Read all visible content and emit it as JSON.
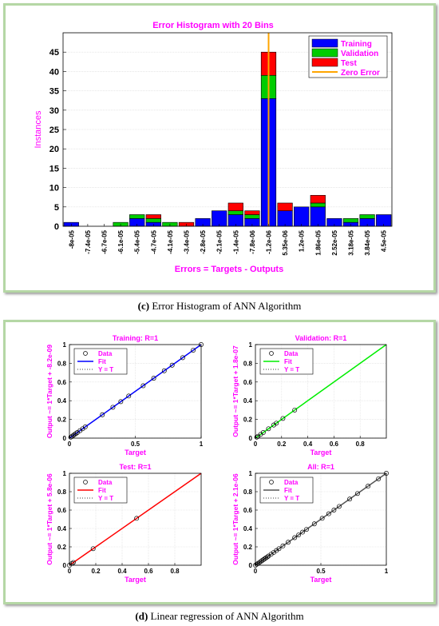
{
  "captions": {
    "c_letter": "(c)",
    "c_text": "Error Histogram of ANN Algorithm",
    "d_letter": "(d)",
    "d_text": "Linear regression of ANN Algorithm"
  },
  "colors": {
    "training": "#0000ff",
    "validation": "#00cc00",
    "test": "#ff0000",
    "zero_error": "#ffa500",
    "label": "#ff00ff",
    "all_fit": "#555555"
  },
  "chart_data": [
    {
      "type": "bar",
      "stacked": true,
      "title": "Error Histogram with 20 Bins",
      "xlabel": "Errors = Targets - Outputs",
      "ylabel": "Instances",
      "categories": [
        "-8e-05",
        "-7.4e-05",
        "-6.7e-05",
        "-6.1e-05",
        "-5.4e-05",
        "-4.7e-05",
        "-4.1e-05",
        "-3.4e-05",
        "-2.8e-05",
        "-2.1e-05",
        "-1.4e-05",
        "-7.8e-06",
        "-1.2e-06",
        "5.35e-06",
        "1.2e-05",
        "1.86e-05",
        "2.52e-05",
        "3.18e-05",
        "3.84e-05",
        "4.5e-05"
      ],
      "series": [
        {
          "name": "Training",
          "color": "#0000ff",
          "values": [
            1,
            0,
            0,
            0,
            2,
            1,
            0,
            0,
            2,
            4,
            3,
            2,
            33,
            4,
            5,
            5,
            2,
            1,
            2,
            3
          ]
        },
        {
          "name": "Validation",
          "color": "#00cc00",
          "values": [
            0,
            0,
            0,
            1,
            1,
            1,
            1,
            0,
            0,
            0,
            1,
            1,
            6,
            0,
            0,
            1,
            0,
            1,
            1,
            0
          ]
        },
        {
          "name": "Test",
          "color": "#ff0000",
          "values": [
            0,
            0,
            0,
            0,
            0,
            1,
            0,
            1,
            0,
            0,
            2,
            1,
            6,
            2,
            0,
            2,
            0,
            0,
            0,
            0
          ]
        }
      ],
      "zero_error_legend": "Zero Error",
      "zero_error_category": "-1.2e-06",
      "ylim": [
        0,
        50
      ],
      "yticks": [
        0,
        5,
        10,
        15,
        20,
        25,
        30,
        35,
        40,
        45
      ],
      "legend_position": "top-right",
      "grid": true
    },
    {
      "type": "scatter",
      "title": "Training: R=1",
      "xlabel": "Target",
      "ylabel": "Output ~= 1*Target + -8.2e-09",
      "fit_color": "#0000ff",
      "legend": [
        "Data",
        "Fit",
        "Y = T"
      ],
      "xlim": [
        0,
        1
      ],
      "ylim": [
        0,
        1
      ],
      "xticks": [
        0,
        0.5,
        1
      ],
      "yticks": [
        0,
        0.2,
        0.4,
        0.6,
        0.8,
        1
      ],
      "xtick_labels": [
        "0",
        "0.5",
        "1"
      ],
      "ytick_labels": [
        "0",
        "0.2",
        "0.4",
        "0.6",
        "0.8",
        "1"
      ],
      "points": [
        0.01,
        0.02,
        0.03,
        0.04,
        0.05,
        0.06,
        0.08,
        0.1,
        0.12,
        0.25,
        0.33,
        0.39,
        0.45,
        0.56,
        0.64,
        0.72,
        0.78,
        0.86,
        0.94,
        1.0
      ]
    },
    {
      "type": "scatter",
      "title": "Validation: R=1",
      "xlabel": "Target",
      "ylabel": "Output ~= 1*Target + 1.8e-07",
      "fit_color": "#00ee00",
      "legend": [
        "Data",
        "Fit",
        "Y = T"
      ],
      "xlim": [
        0,
        1
      ],
      "ylim": [
        0,
        1
      ],
      "xticks": [
        0,
        0.2,
        0.4,
        0.6,
        0.8
      ],
      "yticks": [
        0,
        0.2,
        0.4,
        0.6,
        0.8,
        1
      ],
      "xtick_labels": [
        "0",
        "0.2",
        "0.4",
        "0.6",
        "0.8"
      ],
      "ytick_labels": [
        "0",
        "0.2",
        "0.4",
        "0.6",
        "0.8",
        "1"
      ],
      "points": [
        0.01,
        0.02,
        0.04,
        0.06,
        0.1,
        0.14,
        0.16,
        0.21,
        0.3
      ]
    },
    {
      "type": "scatter",
      "title": "Test: R=1",
      "xlabel": "Target",
      "ylabel": "Output ~= 1*Target + 5.8e-06",
      "fit_color": "#ff0000",
      "legend": [
        "Data",
        "Fit",
        "Y = T"
      ],
      "xlim": [
        0,
        1
      ],
      "ylim": [
        0,
        1
      ],
      "xticks": [
        0,
        0.2,
        0.4,
        0.6,
        0.8
      ],
      "yticks": [
        0,
        0.2,
        0.4,
        0.6,
        0.8,
        1
      ],
      "xtick_labels": [
        "0",
        "0.2",
        "0.4",
        "0.6",
        "0.8"
      ],
      "ytick_labels": [
        "0",
        "0.2",
        "0.4",
        "0.6",
        "0.8",
        "1"
      ],
      "points": [
        0.0,
        0.02,
        0.03,
        0.18,
        0.51
      ]
    },
    {
      "type": "scatter",
      "title": "All: R=1",
      "xlabel": "Target",
      "ylabel": "Output ~= 1*Target + 2.1e-06",
      "fit_color": "#555555",
      "legend": [
        "Data",
        "Fit",
        "Y = T"
      ],
      "xlim": [
        0,
        1
      ],
      "ylim": [
        0,
        1
      ],
      "xticks": [
        0,
        0.5,
        1
      ],
      "yticks": [
        0,
        0.2,
        0.4,
        0.6,
        0.8,
        1
      ],
      "xtick_labels": [
        "0",
        "0.5",
        "1"
      ],
      "ytick_labels": [
        "0",
        "0.2",
        "0.4",
        "0.6",
        "0.8",
        "1"
      ],
      "points": [
        0.0,
        0.01,
        0.02,
        0.03,
        0.04,
        0.05,
        0.06,
        0.07,
        0.08,
        0.09,
        0.1,
        0.12,
        0.14,
        0.16,
        0.18,
        0.21,
        0.25,
        0.3,
        0.33,
        0.36,
        0.39,
        0.45,
        0.51,
        0.56,
        0.6,
        0.64,
        0.72,
        0.78,
        0.86,
        0.94,
        1.0
      ]
    }
  ]
}
